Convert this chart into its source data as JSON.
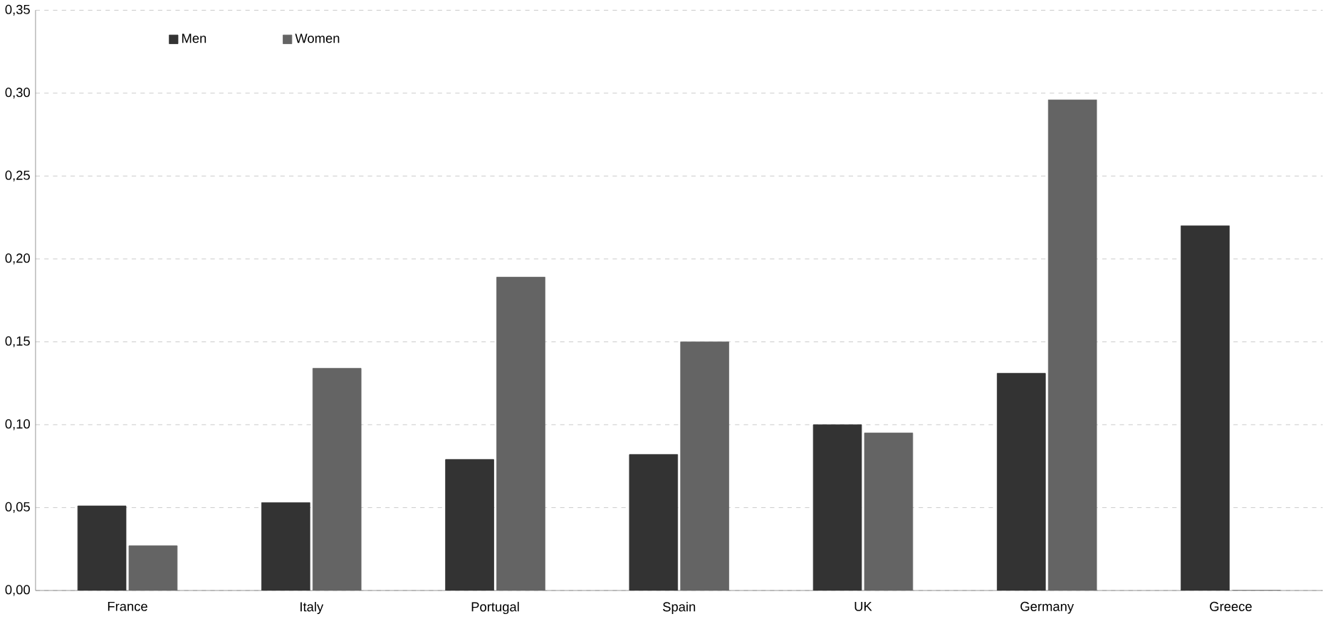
{
  "chart_data": {
    "type": "bar",
    "categories": [
      "France",
      "Italy",
      "Portugal",
      "Spain",
      "UK",
      "Germany",
      "Greece"
    ],
    "series": [
      {
        "name": "Men",
        "color": "#333333",
        "values": [
          0.051,
          0.053,
          0.079,
          0.082,
          0.1,
          0.131,
          0.22
        ]
      },
      {
        "name": "Women",
        "color": "#646464",
        "values": [
          0.027,
          0.134,
          0.189,
          0.15,
          0.095,
          0.296,
          0
        ]
      }
    ],
    "ylim": [
      0,
      0.35
    ],
    "yticks": [
      {
        "value": 0,
        "label": "0,00"
      },
      {
        "value": 0.05,
        "label": "0,05"
      },
      {
        "value": 0.1,
        "label": "0,10"
      },
      {
        "value": 0.15,
        "label": "0,15"
      },
      {
        "value": 0.2,
        "label": "0,20"
      },
      {
        "value": 0.25,
        "label": "0,25"
      },
      {
        "value": 0.3,
        "label": "0,30"
      },
      {
        "value": 0.35,
        "label": "0,35"
      }
    ],
    "grid": "y",
    "legend": "top left"
  }
}
